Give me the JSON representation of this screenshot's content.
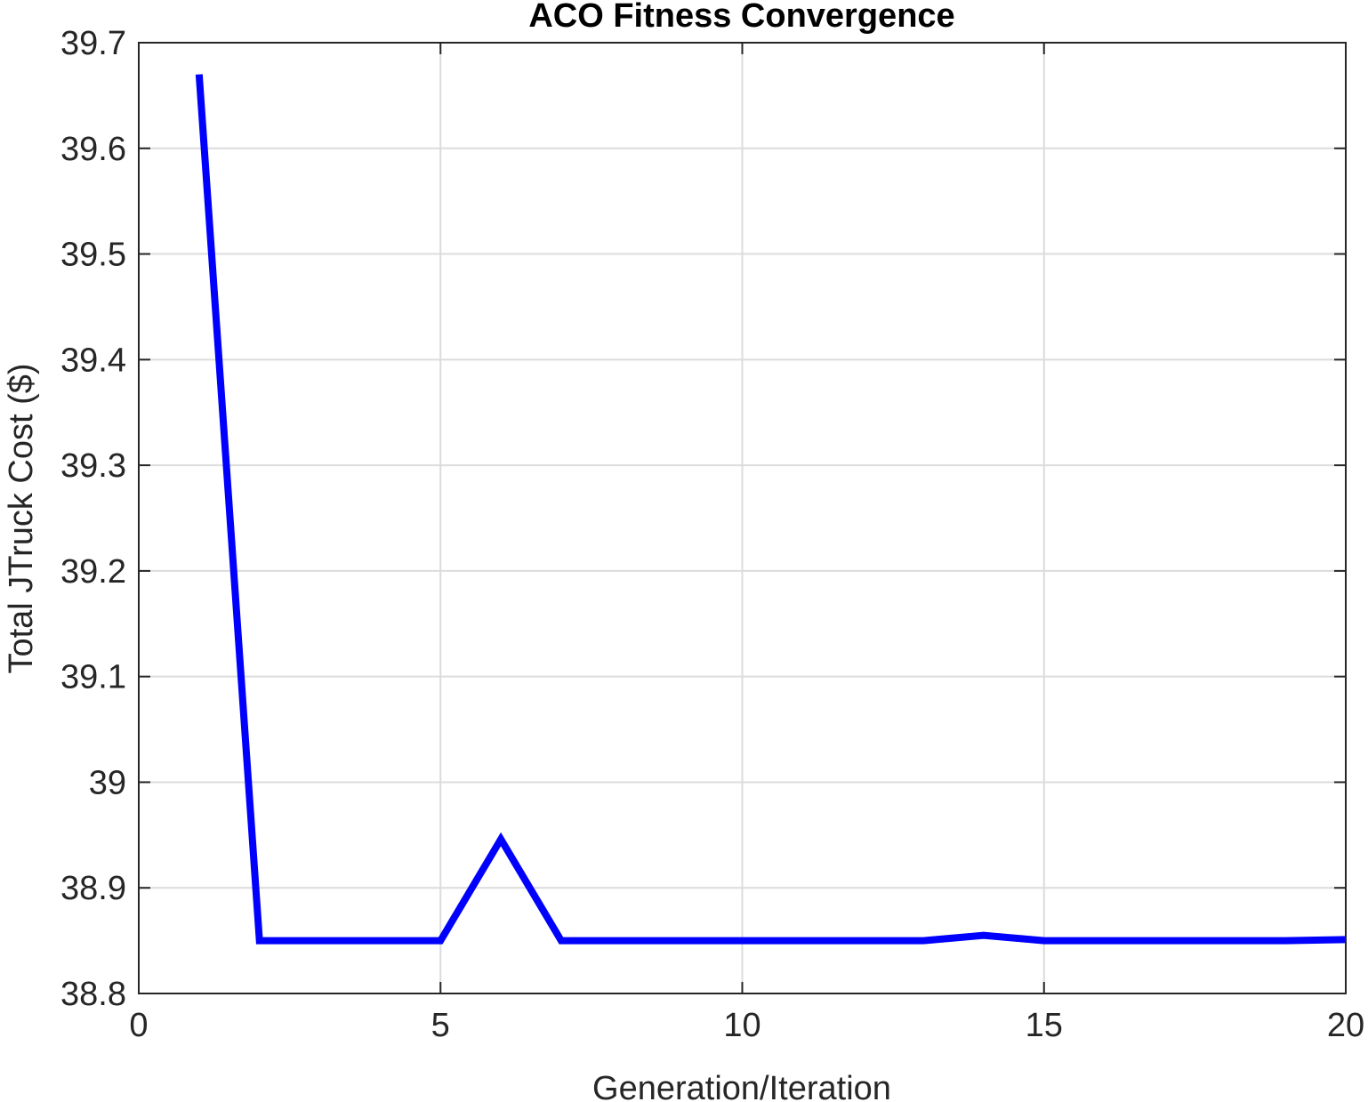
{
  "chart_data": {
    "type": "line",
    "title": "ACO Fitness Convergence",
    "xlabel": "Generation/Iteration",
    "ylabel": "Total JTruck Cost ($)",
    "xlim": [
      0,
      20
    ],
    "ylim": [
      38.8,
      39.7
    ],
    "xticks": [
      0,
      5,
      10,
      15,
      20
    ],
    "xtick_labels": [
      "0",
      "5",
      "10",
      "15",
      "20"
    ],
    "yticks": [
      38.8,
      38.9,
      39.0,
      39.1,
      39.2,
      39.3,
      39.4,
      39.5,
      39.6,
      39.7
    ],
    "ytick_labels": [
      "38.8",
      "38.9",
      "39",
      "39.1",
      "39.2",
      "39.3",
      "39.4",
      "39.5",
      "39.6",
      "39.7"
    ],
    "grid": true,
    "series": [
      {
        "color": "#0000ff",
        "x": [
          1,
          2,
          3,
          4,
          5,
          6,
          7,
          8,
          9,
          10,
          11,
          12,
          13,
          14,
          15,
          16,
          17,
          18,
          19,
          20
        ],
        "y": [
          39.67,
          38.85,
          38.85,
          38.85,
          38.85,
          38.946,
          38.85,
          38.85,
          38.85,
          38.85,
          38.85,
          38.85,
          38.85,
          38.855,
          38.85,
          38.85,
          38.85,
          38.85,
          38.85,
          38.851
        ]
      }
    ]
  }
}
